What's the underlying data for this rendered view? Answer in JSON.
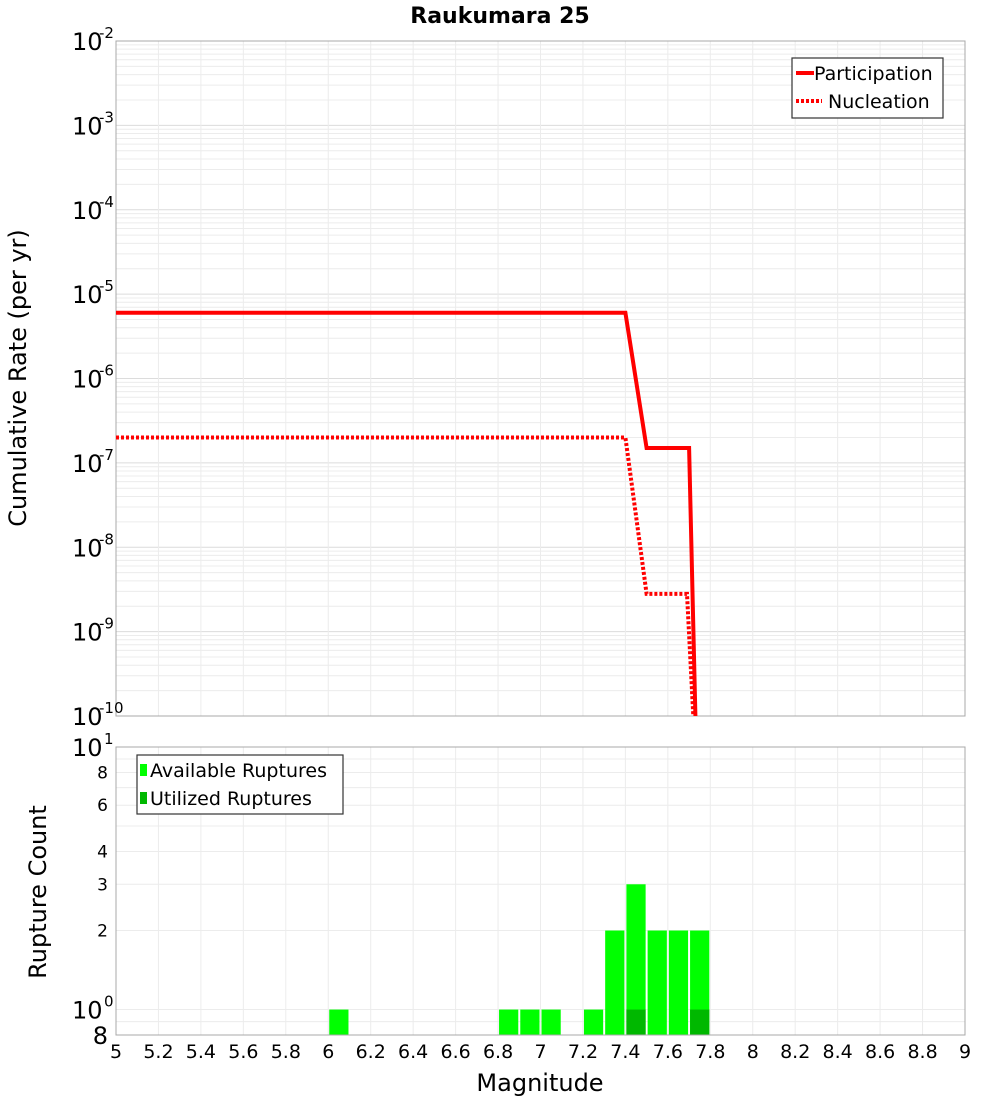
{
  "chart_data": [
    {
      "type": "line",
      "title": "Raukumara 25",
      "xlabel": "",
      "ylabel": "Cumulative Rate (per yr)",
      "xlim": [
        5,
        9
      ],
      "ylim": [
        1e-10,
        0.01
      ],
      "yscale": "log",
      "y_tick_labels": [
        {
          "base": "10",
          "exp": "-2"
        },
        {
          "base": "10",
          "exp": "-3"
        },
        {
          "base": "10",
          "exp": "-4"
        },
        {
          "base": "10",
          "exp": "-5"
        },
        {
          "base": "10",
          "exp": "-6"
        },
        {
          "base": "10",
          "exp": "-7"
        },
        {
          "base": "10",
          "exp": "-8"
        },
        {
          "base": "10",
          "exp": "-9"
        },
        {
          "base": "10",
          "exp": "-10"
        }
      ],
      "grid": true,
      "legend_position": "top-right",
      "series": [
        {
          "name": "Participation",
          "color": "#ff0000",
          "style": "solid",
          "x": [
            5.0,
            7.4,
            7.5,
            7.7,
            7.73
          ],
          "y": [
            6e-06,
            6e-06,
            1.5e-07,
            1.5e-07,
            1e-10
          ]
        },
        {
          "name": "Nucleation",
          "color": "#ff0000",
          "style": "dotted",
          "x": [
            5.0,
            7.4,
            7.5,
            7.69,
            7.72
          ],
          "y": [
            2e-07,
            2e-07,
            2.8e-09,
            2.8e-09,
            1e-10
          ]
        }
      ]
    },
    {
      "type": "bar",
      "xlabel": "Magnitude",
      "ylabel": "Rupture Count",
      "xlim": [
        5,
        9
      ],
      "ylim": [
        0.8,
        10
      ],
      "yscale": "log",
      "x_tick_labels": [
        "5",
        "5.2",
        "5.4",
        "5.6",
        "5.8",
        "6",
        "6.2",
        "6.4",
        "6.6",
        "6.8",
        "7",
        "7.2",
        "7.4",
        "7.6",
        "7.8",
        "8",
        "8.2",
        "8.4",
        "8.6",
        "8.8",
        "9"
      ],
      "y_ticks": [
        {
          "value": 10,
          "base": "10",
          "exp": "1"
        },
        {
          "value": 8,
          "label": "8"
        },
        {
          "value": 6,
          "label": "6"
        },
        {
          "value": 4,
          "label": "4"
        },
        {
          "value": 3,
          "label": "3"
        },
        {
          "value": 2,
          "label": "2"
        },
        {
          "value": 1,
          "base": "10",
          "exp": "0"
        },
        {
          "value": 0.8,
          "label": "8"
        }
      ],
      "grid": true,
      "legend_position": "top-left",
      "bin_width": 0.1,
      "series": [
        {
          "name": "Available Ruptures",
          "color": "#00ff00",
          "x": [
            6.05,
            6.85,
            6.95,
            7.05,
            7.25,
            7.35,
            7.45,
            7.55,
            7.65,
            7.75
          ],
          "values": [
            1,
            1,
            1,
            1,
            1,
            2,
            3,
            2,
            2,
            2
          ]
        },
        {
          "name": "Utilized Ruptures",
          "color": "#00b800",
          "x": [
            7.45,
            7.75
          ],
          "values": [
            1,
            1
          ]
        }
      ]
    }
  ]
}
